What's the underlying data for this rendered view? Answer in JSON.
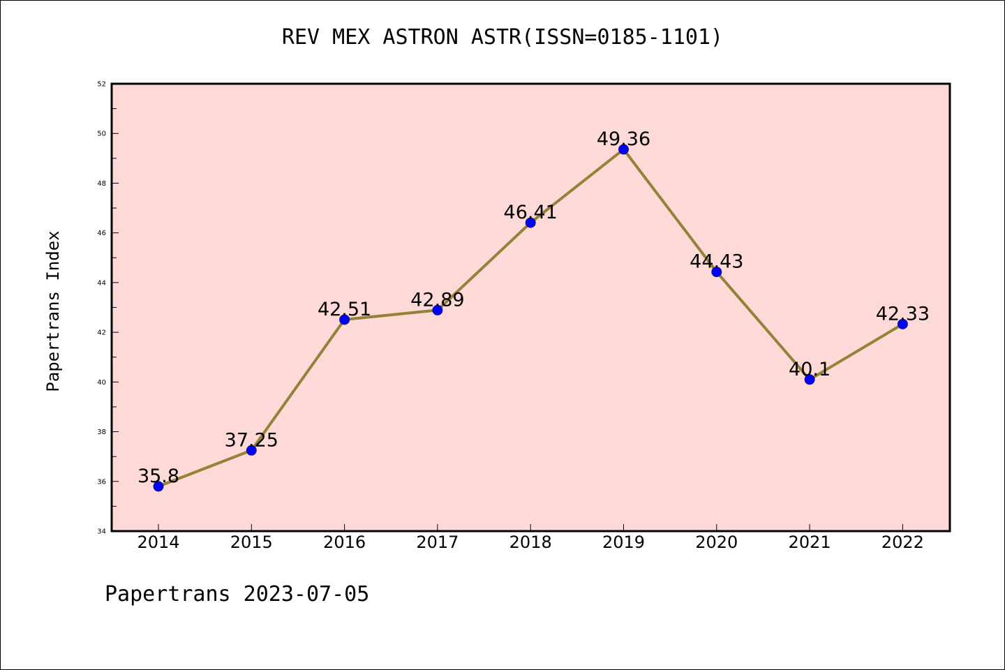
{
  "chart_data": {
    "type": "line",
    "title": "REV MEX ASTRON ASTR(ISSN=0185-1101)",
    "ylabel": "Papertrans Index",
    "xlabel": "",
    "footer": "Papertrans 2023-07-05",
    "categories": [
      "2014",
      "2015",
      "2016",
      "2017",
      "2018",
      "2019",
      "2020",
      "2021",
      "2022"
    ],
    "values": [
      35.8,
      37.25,
      42.51,
      42.89,
      46.41,
      49.36,
      44.43,
      40.1,
      42.33
    ],
    "data_labels": [
      "35.8",
      "37.25",
      "42.51",
      "42.89",
      "46.41",
      "49.36",
      "44.43",
      "40.1",
      "42.33"
    ],
    "ylim": [
      34,
      52
    ],
    "yticks": [
      "34",
      "36",
      "38",
      "40",
      "42",
      "44",
      "46",
      "48",
      "50",
      "52"
    ],
    "grid": false,
    "colors": {
      "plot_background": "#fddad8",
      "line": "#938238",
      "marker": "#0000ff",
      "marker_edge": "#1a1a6e"
    }
  }
}
